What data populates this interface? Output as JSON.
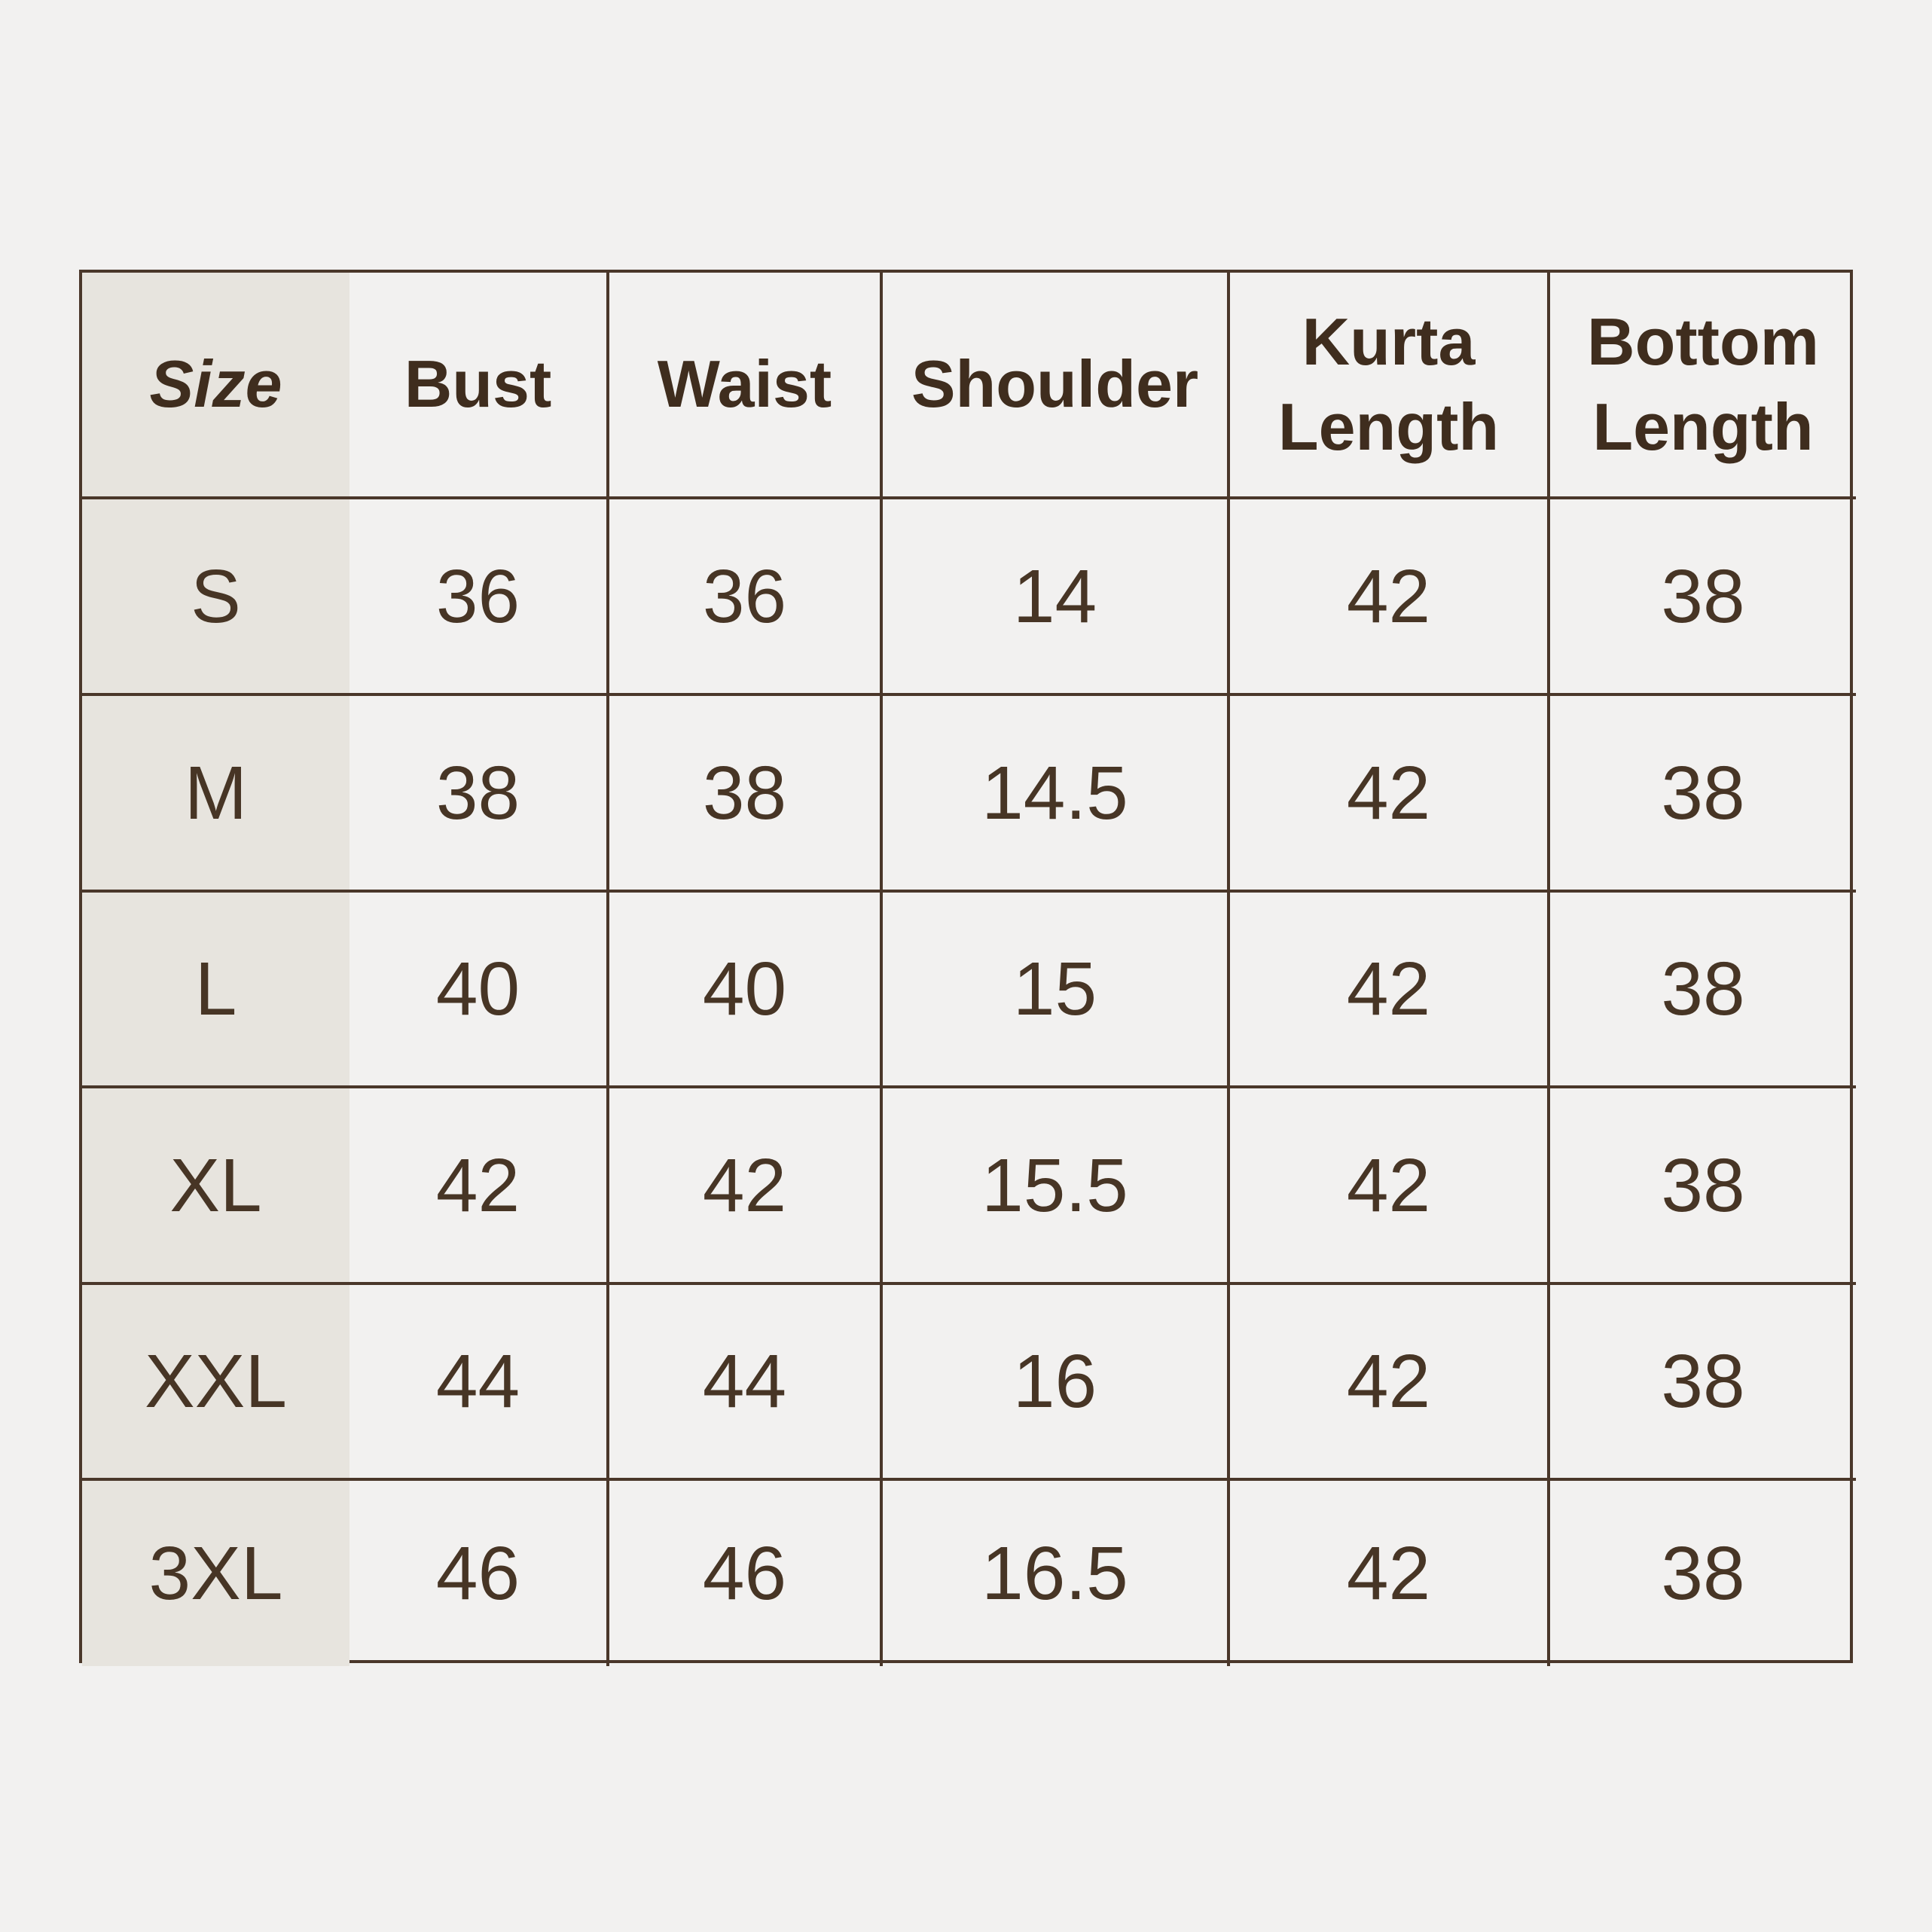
{
  "page": {
    "background_color": "#f2f1f0"
  },
  "table": {
    "border_color": "#4a372a",
    "size_column_bg": "#e7e4de",
    "header_text_color": "#3f2d1e",
    "data_text_color": "#473525",
    "columns": [
      "Size",
      "Bust",
      "Waist",
      "Shoulder",
      "Kurta Length",
      "Bottom Length"
    ],
    "rows": [
      {
        "size": "S",
        "bust": "36",
        "waist": "36",
        "shoulder": "14",
        "kurta_length": "42",
        "bottom_length": "38"
      },
      {
        "size": "M",
        "bust": "38",
        "waist": "38",
        "shoulder": "14.5",
        "kurta_length": "42",
        "bottom_length": "38"
      },
      {
        "size": "L",
        "bust": "40",
        "waist": "40",
        "shoulder": "15",
        "kurta_length": "42",
        "bottom_length": "38"
      },
      {
        "size": "XL",
        "bust": "42",
        "waist": "42",
        "shoulder": "15.5",
        "kurta_length": "42",
        "bottom_length": "38"
      },
      {
        "size": "XXL",
        "bust": "44",
        "waist": "44",
        "shoulder": "16",
        "kurta_length": "42",
        "bottom_length": "38"
      },
      {
        "size": "3XL",
        "bust": "46",
        "waist": "46",
        "shoulder": "16.5",
        "kurta_length": "42",
        "bottom_length": "38"
      }
    ]
  },
  "chart_data": {
    "type": "table",
    "title": "",
    "columns": [
      "Size",
      "Bust",
      "Waist",
      "Shoulder",
      "Kurta Length",
      "Bottom Length"
    ],
    "rows": [
      [
        "S",
        36,
        36,
        14,
        42,
        38
      ],
      [
        "M",
        38,
        38,
        14.5,
        42,
        38
      ],
      [
        "L",
        40,
        40,
        15,
        42,
        38
      ],
      [
        "XL",
        42,
        42,
        15.5,
        42,
        38
      ],
      [
        "XXL",
        44,
        44,
        16,
        42,
        38
      ],
      [
        "3XL",
        46,
        46,
        16.5,
        42,
        38
      ]
    ]
  }
}
